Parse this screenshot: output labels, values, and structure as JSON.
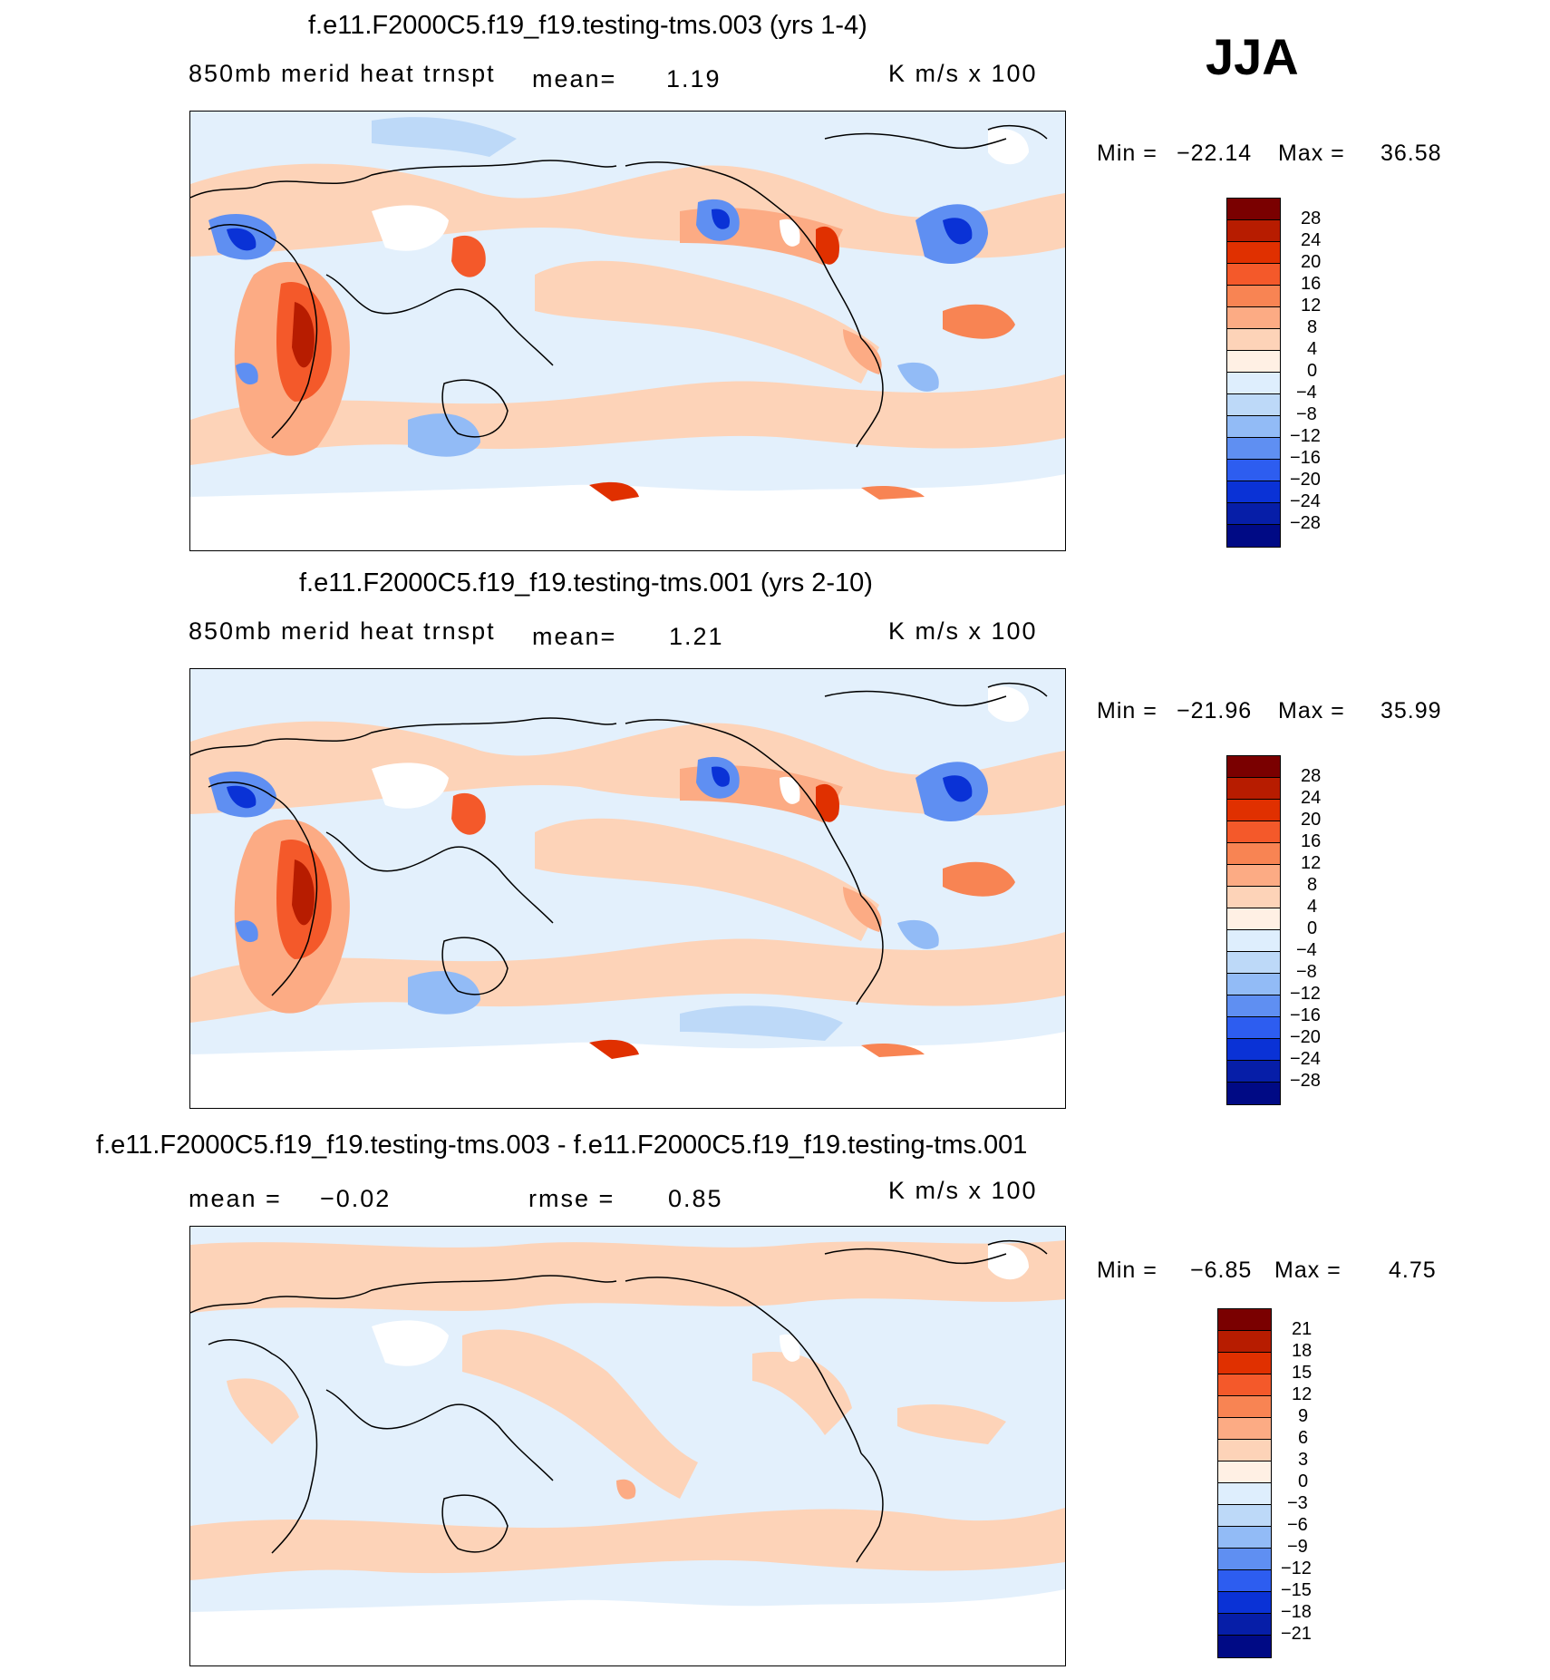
{
  "season_label": "JJA",
  "panels": [
    {
      "title": "f.e11.F2000C5.f19_f19.testing-tms.003 (yrs 1-4)",
      "variable": "850mb merid heat trnspt",
      "mean_label": "mean=",
      "mean_value": "1.19",
      "units": "K m/s x 100",
      "min_label": "Min =",
      "min_value": "−22.14",
      "max_label": "Max =",
      "max_value": "36.58",
      "colorbar_levels": [
        "28",
        "24",
        "20",
        "16",
        "12",
        "8",
        "4",
        "0",
        "−4",
        "−8",
        "−12",
        "−16",
        "−20",
        "−24",
        "−28"
      ]
    },
    {
      "title": "f.e11.F2000C5.f19_f19.testing-tms.001 (yrs 2-10)",
      "variable": "850mb merid heat trnspt",
      "mean_label": "mean=",
      "mean_value": "1.21",
      "units": "K m/s x 100",
      "min_label": "Min =",
      "min_value": "−21.96",
      "max_label": "Max =",
      "max_value": "35.99",
      "colorbar_levels": [
        "28",
        "24",
        "20",
        "16",
        "12",
        "8",
        "4",
        "0",
        "−4",
        "−8",
        "−12",
        "−16",
        "−20",
        "−24",
        "−28"
      ]
    },
    {
      "title": "f.e11.F2000C5.f19_f19.testing-tms.003 - f.e11.F2000C5.f19_f19.testing-tms.001",
      "mean_label": "mean =",
      "mean_value": "−0.02",
      "rmse_label": "rmse =",
      "rmse_value": "0.85",
      "units": "K m/s x 100",
      "min_label": "Min =",
      "min_value": "−6.85",
      "max_label": "Max =",
      "max_value": "4.75",
      "colorbar_levels": [
        "21",
        "18",
        "15",
        "12",
        "9",
        "6",
        "3",
        "0",
        "−3",
        "−6",
        "−9",
        "−12",
        "−15",
        "−18",
        "−21"
      ]
    }
  ],
  "colors": {
    "palette": [
      "#7a0000",
      "#b71c00",
      "#e03000",
      "#f4592a",
      "#f88453",
      "#fcab84",
      "#fdd3b8",
      "#fff0e4",
      "#deeefd",
      "#bdd9f8",
      "#92bbf6",
      "#5f8ff2",
      "#2d5df0",
      "#0a32d6",
      "#061ea8",
      "#000a85"
    ],
    "land_mask": "#ffffff",
    "coast": "#000000"
  }
}
